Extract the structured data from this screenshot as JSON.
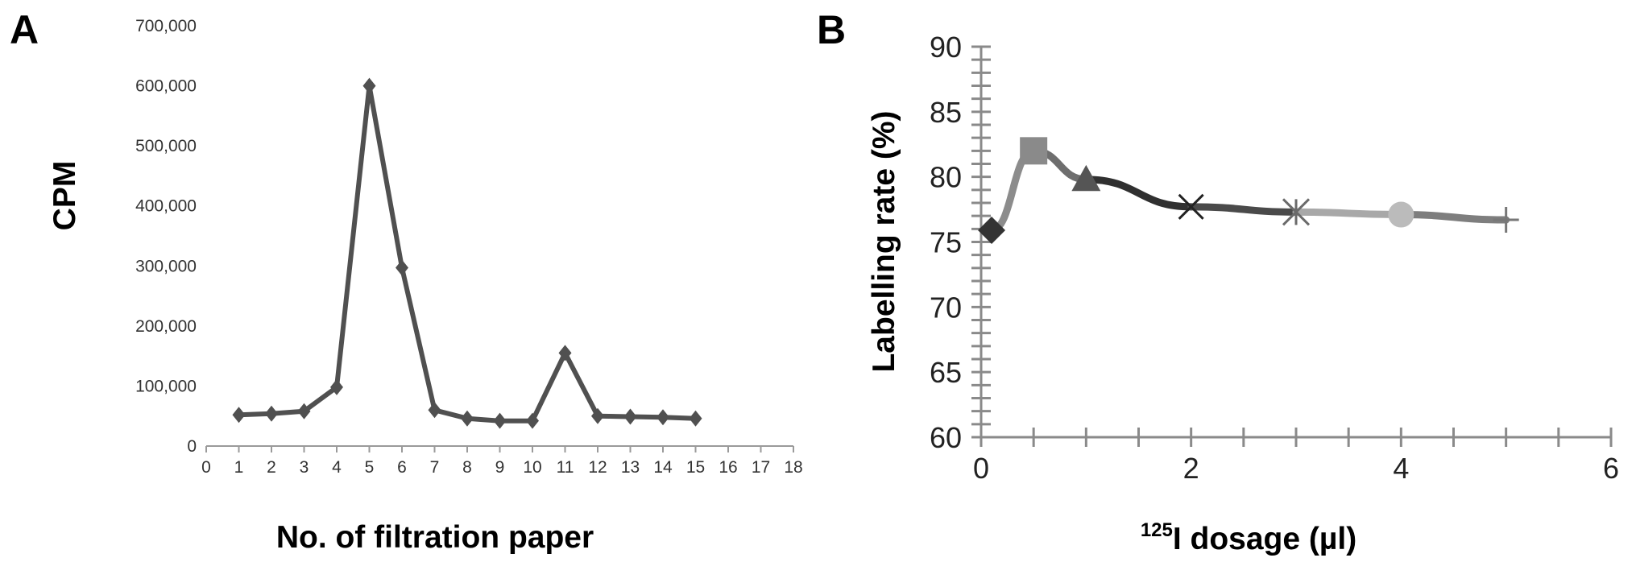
{
  "chart_data": [
    {
      "panel_label": "A",
      "type": "line",
      "xlabel": "No. of filtration paper",
      "ylabel": "CPM",
      "xlim": [
        0,
        18
      ],
      "ylim": [
        0,
        700000
      ],
      "x_ticks": [
        "0",
        "1",
        "2",
        "3",
        "4",
        "5",
        "6",
        "7",
        "8",
        "9",
        "10",
        "11",
        "12",
        "13",
        "14",
        "15",
        "16",
        "17",
        "18"
      ],
      "y_ticks": [
        "0",
        "100,000",
        "200,000",
        "300,000",
        "400,000",
        "500,000",
        "600,000",
        "700,000"
      ],
      "grid": false,
      "legend": "none",
      "series": [
        {
          "marker": "diamond",
          "color": "#505050",
          "x": [
            1,
            2,
            3,
            4,
            5,
            6,
            7,
            8,
            9,
            10,
            11,
            12,
            13,
            14,
            15
          ],
          "y": [
            52000,
            54000,
            58000,
            98000,
            600000,
            297000,
            60000,
            46000,
            42000,
            42000,
            155000,
            50000,
            49000,
            48000,
            46000
          ]
        }
      ]
    },
    {
      "panel_label": "B",
      "type": "line",
      "xlabel_sup": "125",
      "xlabel_main": "I dosage (µl)",
      "ylabel": "Labelling rate (%)",
      "xlim": [
        0,
        6
      ],
      "ylim": [
        60,
        90
      ],
      "x_ticks": [
        "0",
        "2",
        "4",
        "6"
      ],
      "y_ticks": [
        "60",
        "65",
        "70",
        "75",
        "80",
        "85",
        "90"
      ],
      "grid": false,
      "legend": "none",
      "series": [
        {
          "x": [
            0.1,
            0.5,
            1,
            2,
            3,
            4,
            5
          ],
          "y": [
            75.9,
            82.0,
            79.8,
            77.7,
            77.3,
            77.1,
            76.7
          ],
          "markers": [
            "diamond",
            "square",
            "triangle",
            "x",
            "star",
            "circle",
            "plus"
          ],
          "marker_colors": [
            "#333333",
            "#8a8a8a",
            "#555555",
            "#222222",
            "#6a6a6a",
            "#bbbbbb",
            "#777777"
          ],
          "segment_colors": [
            "#8c8c8c",
            "#6e6e6e",
            "#303030",
            "#4a4a4a",
            "#a8a8a8",
            "#7e7e7e"
          ]
        }
      ]
    }
  ]
}
